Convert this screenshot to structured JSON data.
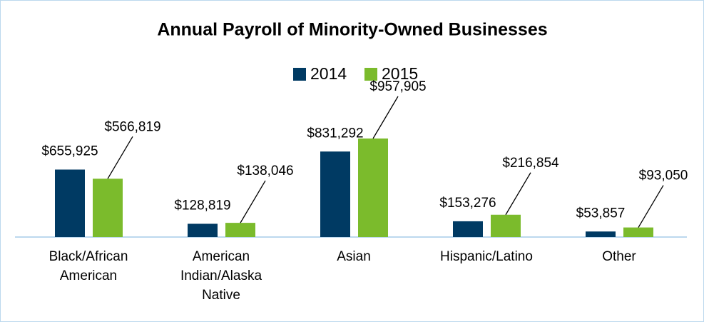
{
  "chart_data": {
    "type": "bar",
    "title": "Annual Payroll of Minority-Owned Businesses",
    "categories": [
      "Black/African American",
      "American Indian/Alaska Native",
      "Asian",
      "Hispanic/Latino",
      "Other"
    ],
    "series": [
      {
        "name": "2014",
        "color": "#003a63",
        "values": [
          655925,
          128819,
          831292,
          153276,
          53857
        ],
        "value_labels": [
          "$655,925",
          "$128,819",
          "$831,292",
          "$153,276",
          "$53,857"
        ]
      },
      {
        "name": "2015",
        "color": "#7bbb2c",
        "values": [
          566819,
          138046,
          957905,
          216854,
          93050
        ],
        "value_labels": [
          "$566,819",
          "$138,046",
          "$957,905",
          "$216,854",
          "$93,050"
        ]
      }
    ],
    "legend": "top"
  }
}
